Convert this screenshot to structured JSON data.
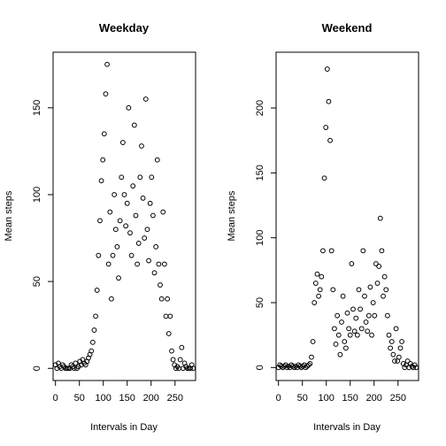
{
  "chart_data": [
    {
      "type": "scatter",
      "title": "Weekday",
      "xlabel": "Intervals in Day",
      "ylabel": "Mean steps",
      "xlim": [
        -5,
        293
      ],
      "ylim": [
        -7,
        182
      ],
      "xticks": [
        0,
        50,
        100,
        150,
        200,
        250
      ],
      "yticks": [
        0,
        50,
        100,
        150
      ],
      "grid": false,
      "x": [
        0,
        3,
        6,
        9,
        12,
        15,
        18,
        21,
        24,
        27,
        30,
        33,
        36,
        39,
        42,
        45,
        48,
        51,
        54,
        57,
        60,
        63,
        66,
        69,
        72,
        75,
        78,
        81,
        84,
        87,
        90,
        93,
        96,
        99,
        102,
        105,
        108,
        111,
        114,
        117,
        120,
        123,
        126,
        129,
        132,
        135,
        138,
        141,
        144,
        147,
        150,
        153,
        156,
        159,
        162,
        165,
        168,
        171,
        174,
        177,
        180,
        183,
        186,
        189,
        192,
        195,
        198,
        201,
        204,
        207,
        210,
        213,
        216,
        219,
        222,
        225,
        228,
        231,
        234,
        237,
        240,
        243,
        246,
        249,
        252,
        255,
        258,
        261,
        264,
        267,
        270,
        273,
        276,
        279,
        282,
        285,
        288
      ],
      "y": [
        2,
        0,
        3,
        1,
        0,
        2,
        1,
        0,
        0,
        0,
        0,
        2,
        1,
        0,
        3,
        0,
        1,
        4,
        2,
        5,
        3,
        2,
        4,
        6,
        8,
        10,
        15,
        22,
        30,
        45,
        65,
        85,
        108,
        120,
        135,
        158,
        175,
        60,
        90,
        40,
        65,
        100,
        80,
        70,
        52,
        85,
        110,
        130,
        100,
        82,
        95,
        150,
        78,
        65,
        105,
        140,
        88,
        60,
        72,
        110,
        128,
        98,
        75,
        155,
        80,
        62,
        95,
        110,
        88,
        55,
        70,
        120,
        60,
        48,
        40,
        90,
        60,
        30,
        40,
        20,
        30,
        10,
        5,
        2,
        0,
        1,
        0,
        5,
        12,
        0,
        3,
        1,
        0,
        0,
        0,
        2,
        0
      ]
    },
    {
      "type": "scatter",
      "title": "Weekend",
      "xlabel": "Intervals in Day",
      "ylabel": "Mean steps",
      "xlim": [
        -5,
        293
      ],
      "ylim": [
        -10,
        243
      ],
      "xticks": [
        0,
        50,
        100,
        150,
        200,
        250
      ],
      "yticks": [
        0,
        50,
        100,
        150,
        200
      ],
      "grid": false,
      "x": [
        0,
        3,
        6,
        9,
        12,
        15,
        18,
        21,
        24,
        27,
        30,
        33,
        36,
        39,
        42,
        45,
        48,
        51,
        54,
        57,
        60,
        63,
        66,
        69,
        72,
        75,
        78,
        81,
        84,
        87,
        90,
        93,
        96,
        99,
        102,
        105,
        108,
        111,
        114,
        117,
        120,
        123,
        126,
        129,
        132,
        135,
        138,
        141,
        144,
        147,
        150,
        153,
        156,
        159,
        162,
        165,
        168,
        171,
        174,
        177,
        180,
        183,
        186,
        189,
        192,
        195,
        198,
        201,
        204,
        207,
        210,
        213,
        216,
        219,
        222,
        225,
        228,
        231,
        234,
        237,
        240,
        243,
        246,
        249,
        252,
        255,
        258,
        261,
        264,
        267,
        270,
        273,
        276,
        279,
        282,
        285,
        288
      ],
      "y": [
        0,
        2,
        1,
        0,
        1,
        2,
        0,
        1,
        0,
        2,
        1,
        0,
        1,
        0,
        2,
        1,
        0,
        1,
        2,
        0,
        1,
        2,
        3,
        8,
        20,
        50,
        65,
        72,
        55,
        60,
        70,
        90,
        146,
        185,
        230,
        205,
        175,
        90,
        60,
        30,
        18,
        40,
        25,
        10,
        35,
        55,
        20,
        15,
        42,
        30,
        25,
        80,
        45,
        28,
        38,
        25,
        60,
        45,
        30,
        90,
        55,
        35,
        28,
        40,
        62,
        25,
        50,
        40,
        80,
        65,
        78,
        115,
        90,
        55,
        70,
        60,
        40,
        25,
        15,
        20,
        10,
        5,
        30,
        5,
        8,
        15,
        20,
        3,
        0,
        2,
        5,
        0,
        3,
        1,
        0,
        2,
        0
      ]
    }
  ]
}
